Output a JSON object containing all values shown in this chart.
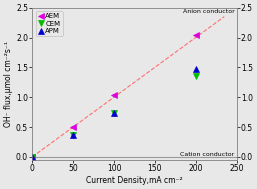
{
  "xlabel": "Current Density,mA cm⁻²",
  "ylabel": "OH⁻ flux,μmol cm⁻²s⁻¹",
  "xlim": [
    0,
    250
  ],
  "ylim": [
    -0.05,
    2.5
  ],
  "anion_label": "Anion conductor",
  "cation_label": "Cation conductor",
  "AEM": {
    "x": [
      0,
      50,
      100,
      200
    ],
    "y": [
      0.0,
      0.5,
      1.03,
      2.05
    ],
    "color": "#dd00dd",
    "marker": "<"
  },
  "CEM": {
    "x": [
      0,
      50,
      100,
      200
    ],
    "y": [
      0.0,
      0.37,
      0.74,
      1.35
    ],
    "color": "#00bb00",
    "marker": "v"
  },
  "APM": {
    "x": [
      0,
      50,
      100,
      200
    ],
    "y": [
      0.0,
      0.37,
      0.74,
      1.48
    ],
    "color": "#0000cc",
    "marker": "^"
  },
  "fit_x": [
    0,
    235
  ],
  "fit_y": [
    0.0,
    2.35
  ],
  "fit_color": "#ff7070",
  "zero_line_x": [
    0,
    250
  ],
  "zero_line_y": [
    0.0,
    0.0
  ],
  "zero_line_color": "#999999",
  "xticks": [
    0,
    50,
    100,
    150,
    200,
    250
  ],
  "yticks": [
    0.0,
    0.5,
    1.0,
    1.5,
    2.0,
    2.5
  ],
  "marker_size": 4,
  "linewidth": 0.8,
  "bg_color": "#e8e8e8",
  "fig_color": "#e8e8e8"
}
